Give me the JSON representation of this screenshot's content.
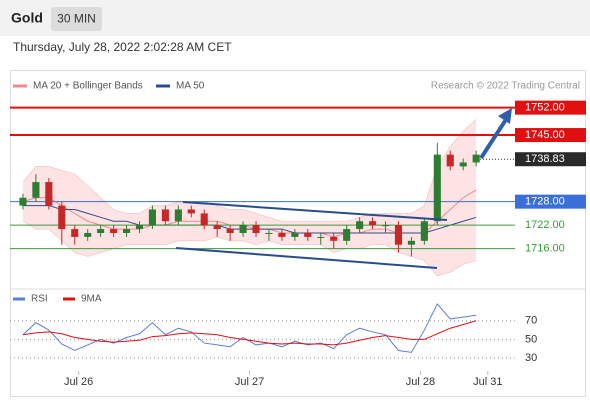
{
  "chart_data": [
    {
      "type": "candlestick",
      "title": "Gold",
      "timeframe": "30 MIN",
      "subtitle": "Thursday, July 28, 2022 2:02:28 AM CET",
      "source": "Research © 2022 Trading Central",
      "x": [
        1,
        2,
        3,
        4,
        5,
        6,
        7,
        8,
        9,
        10,
        11,
        12,
        13,
        14,
        15,
        16,
        17,
        18,
        19,
        20,
        21,
        22,
        23,
        24,
        25,
        26,
        27,
        28,
        29,
        30,
        31,
        32,
        33,
        34,
        35,
        36
      ],
      "open": [
        1727,
        1729,
        1733,
        1727,
        1721,
        1719,
        1720,
        1721,
        1720,
        1721,
        1722,
        1726,
        1723,
        1726,
        1725,
        1722,
        1721,
        1720,
        1722,
        1720,
        1720,
        1719,
        1720,
        1719,
        1719,
        1718,
        1721,
        1723,
        1722,
        1722,
        1717,
        1718,
        1723,
        1740,
        1737,
        1738
      ],
      "high": [
        1730,
        1735,
        1734,
        1728,
        1722,
        1721,
        1722,
        1722,
        1722,
        1723,
        1727,
        1727,
        1727,
        1727,
        1726,
        1723,
        1722,
        1723,
        1723,
        1721,
        1721,
        1721,
        1721,
        1720,
        1720,
        1722,
        1724,
        1724,
        1723,
        1723,
        1719,
        1724,
        1743,
        1741,
        1739,
        1741
      ],
      "low": [
        1726,
        1728,
        1726,
        1717,
        1717,
        1718,
        1719,
        1719,
        1719,
        1720,
        1721,
        1722,
        1722,
        1724,
        1721,
        1719,
        1718,
        1719,
        1719,
        1718,
        1718,
        1718,
        1718,
        1717,
        1716,
        1717,
        1720,
        1721,
        1720,
        1715,
        1714,
        1717,
        1722,
        1736,
        1736,
        1737
      ],
      "close": [
        1729,
        1733,
        1727,
        1721,
        1719,
        1720,
        1721,
        1720,
        1721,
        1722,
        1726,
        1723,
        1726,
        1725,
        1722,
        1721,
        1720,
        1722,
        1720,
        1720,
        1719,
        1720,
        1719,
        1719,
        1718,
        1721,
        1723,
        1722,
        1722,
        1717,
        1718,
        1723,
        1740,
        1737,
        1738,
        1740
      ],
      "up_color": "#2e7d32",
      "down_color": "#c62828",
      "overlays": [
        {
          "name": "MA 20 + Bollinger Bands",
          "color": "#f08a8a",
          "band_color": "#fde3e3",
          "values": [
            1728,
            1729,
            1729,
            1727,
            1725,
            1723,
            1722,
            1721,
            1721,
            1721,
            1722,
            1722,
            1723,
            1723,
            1723,
            1723,
            1722,
            1722,
            1721,
            1721,
            1720,
            1720,
            1720,
            1720,
            1719,
            1720,
            1720,
            1721,
            1721,
            1720,
            1720,
            1720,
            1723,
            1726,
            1729,
            1731
          ],
          "upper": [
            1733,
            1737,
            1737,
            1736,
            1735,
            1732,
            1729,
            1726,
            1725,
            1725,
            1727,
            1727,
            1728,
            1728,
            1728,
            1727,
            1726,
            1726,
            1725,
            1724,
            1723,
            1723,
            1723,
            1723,
            1723,
            1723,
            1724,
            1725,
            1725,
            1725,
            1725,
            1727,
            1737,
            1742,
            1746,
            1749
          ],
          "lower": [
            1723,
            1721,
            1721,
            1718,
            1715,
            1714,
            1715,
            1716,
            1717,
            1717,
            1717,
            1717,
            1718,
            1718,
            1718,
            1719,
            1718,
            1718,
            1717,
            1718,
            1717,
            1717,
            1717,
            1717,
            1715,
            1716,
            1716,
            1717,
            1717,
            1715,
            1714,
            1713,
            1709,
            1710,
            1712,
            1713
          ]
        },
        {
          "name": "MA 50",
          "color": "#2b4c8c",
          "values": [
            1727,
            1727,
            1727,
            1726,
            1726,
            1725,
            1724,
            1723,
            1723,
            1722,
            1722,
            1722,
            1722,
            1722,
            1722,
            1722,
            1721,
            1721,
            1721,
            1721,
            1721,
            1720,
            1720,
            1720,
            1720,
            1720,
            1720,
            1720,
            1720,
            1720,
            1720,
            1720,
            1721,
            1722,
            1723,
            1724
          ]
        }
      ],
      "levels": [
        {
          "value": 1752,
          "label": "1752.00",
          "color": "#e01010",
          "boxed": true
        },
        {
          "value": 1745,
          "label": "1745.00",
          "color": "#e01010",
          "boxed": true
        },
        {
          "value": 1728,
          "label": "1728.00",
          "color": "#3a6fd8",
          "boxed": true
        },
        {
          "value": 1722,
          "label": "1722.00",
          "color": "#3a9a3a",
          "boxed": false
        },
        {
          "value": 1716,
          "label": "1716.00",
          "color": "#3a9a3a",
          "boxed": false
        }
      ],
      "last": 1738.83,
      "xlim": [
        0,
        39
      ],
      "xticks": [
        {
          "value": 5.3,
          "label": "Jul 26"
        },
        {
          "value": 18.5,
          "label": "Jul 27"
        },
        {
          "value": 31.7,
          "label": "Jul 28"
        },
        {
          "value": 36.9,
          "label": "Jul 31"
        }
      ],
      "ylim": [
        1708,
        1756.5
      ]
    },
    {
      "type": "line",
      "series": [
        {
          "name": "RSI",
          "color": "#5b7fd6",
          "values": [
            55,
            68,
            60,
            45,
            38,
            44,
            50,
            46,
            52,
            56,
            68,
            55,
            62,
            58,
            46,
            44,
            42,
            52,
            44,
            46,
            42,
            48,
            44,
            46,
            40,
            55,
            62,
            58,
            55,
            38,
            36,
            60,
            88,
            72,
            74,
            76
          ]
        },
        {
          "name": "9MA",
          "color": "#e01010",
          "values": [
            55,
            57,
            58,
            56,
            52,
            50,
            48,
            47,
            48,
            49,
            53,
            54,
            56,
            57,
            56,
            55,
            52,
            50,
            48,
            46,
            45,
            46,
            45,
            45,
            44,
            46,
            49,
            52,
            54,
            52,
            50,
            50,
            56,
            62,
            66,
            70
          ]
        }
      ],
      "ylim": [
        17,
        87
      ],
      "yticks": [
        70,
        50,
        30
      ]
    }
  ]
}
